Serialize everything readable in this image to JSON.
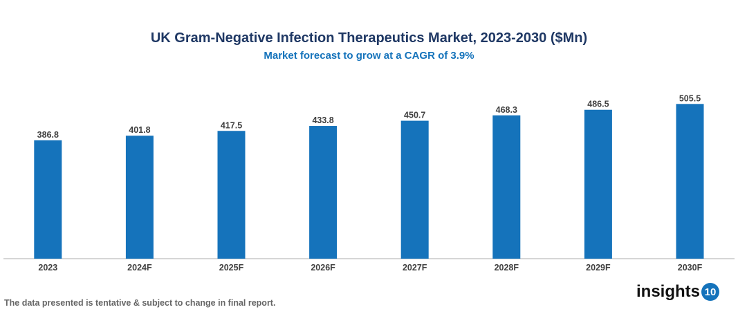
{
  "chart_data": {
    "type": "bar",
    "title": "UK Gram-Negative Infection Therapeutics Market, 2023-2030 ($Mn)",
    "subtitle": "Market forecast to grow at a CAGR of 3.9%",
    "categories": [
      "2023",
      "2024F",
      "2025F",
      "2026F",
      "2027F",
      "2028F",
      "2029F",
      "2030F"
    ],
    "values": [
      386.8,
      401.8,
      417.5,
      433.8,
      450.7,
      468.3,
      486.5,
      505.5
    ],
    "data_labels": [
      "386.8",
      "401.8",
      "417.5",
      "433.8",
      "450.7",
      "468.3",
      "486.5",
      "505.5"
    ],
    "xlabel": "",
    "ylabel": "",
    "ylim": [
      0,
      570
    ],
    "grid": false,
    "legend": "none",
    "bar_color": "#1573bb"
  },
  "footnote": "The data presented is tentative & subject to change in final report.",
  "logo": {
    "text": "insights",
    "badge": "10"
  }
}
